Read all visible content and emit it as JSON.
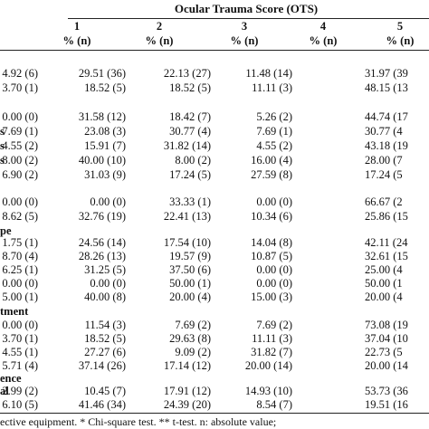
{
  "table": {
    "title": "Ocular Trauma Score (OTS)",
    "columns": [
      "1",
      "2",
      "3",
      "4",
      "5"
    ],
    "subheader": "% (n)",
    "rows": [
      {
        "label": "",
        "values": [
          "4.92 (6)",
          "29.51 (36)",
          "22.13 (27)",
          "11.48 (14)",
          "31.97 (39"
        ]
      },
      {
        "label": "",
        "values": [
          "3.70 (1)",
          "18.52 (5)",
          "18.52 (5)",
          "11.11 (3)",
          "48.15 (13"
        ]
      },
      {
        "label": "",
        "values": [
          "0.00 (0)",
          "31.58 (12)",
          "18.42 (7)",
          "5.26 (2)",
          "44.74 (17"
        ]
      },
      {
        "label": "s",
        "values": [
          "7.69 (1)",
          "23.08 (3)",
          "30.77 (4)",
          "7.69 (1)",
          "30.77 (4"
        ]
      },
      {
        "label": "s",
        "values": [
          "4.55 (2)",
          "15.91 (7)",
          "31.82 (14)",
          "4.55 (2)",
          "43.18 (19"
        ]
      },
      {
        "label": "s",
        "values": [
          "8.00 (2)",
          "40.00 (10)",
          "8.00 (2)",
          "16.00 (4)",
          "28.00 (7"
        ]
      },
      {
        "label": "",
        "values": [
          "6.90 (2)",
          "31.03 (9)",
          "17.24 (5)",
          "27.59 (8)",
          "17.24 (5"
        ]
      },
      {
        "label": "",
        "values": [
          "0.00 (0)",
          "0.00 (0)",
          "33.33 (1)",
          "0.00 (0)",
          "66.67 (2"
        ]
      },
      {
        "label": "",
        "values": [
          "8.62 (5)",
          "32.76 (19)",
          "22.41 (13)",
          "10.34 (6)",
          "25.86 (15"
        ]
      },
      {
        "label": "pe",
        "values": [
          "",
          "",
          "",
          "",
          ""
        ]
      },
      {
        "label": "",
        "values": [
          "1.75 (1)",
          "24.56 (14)",
          "17.54 (10)",
          "14.04 (8)",
          "42.11 (24"
        ]
      },
      {
        "label": "",
        "values": [
          "8.70 (4)",
          "28.26 (13)",
          "19.57 (9)",
          "10.87 (5)",
          "32.61 (15"
        ]
      },
      {
        "label": "",
        "values": [
          "6.25 (1)",
          "31.25 (5)",
          "37.50 (6)",
          "0.00 (0)",
          "25.00 (4"
        ]
      },
      {
        "label": "",
        "values": [
          "0.00 (0)",
          "0.00 (0)",
          "50.00 (1)",
          "0.00 (0)",
          "50.00 (1"
        ]
      },
      {
        "label": "",
        "values": [
          "5.00 (1)",
          "40.00 (8)",
          "20.00 (4)",
          "15.00 (3)",
          "20.00 (4"
        ]
      },
      {
        "label": "tment",
        "values": [
          "",
          "",
          "",
          "",
          ""
        ]
      },
      {
        "label": "",
        "values": [
          "0.00 (0)",
          "11.54 (3)",
          "7.69 (2)",
          "7.69 (2)",
          "73.08 (19"
        ]
      },
      {
        "label": "",
        "values": [
          "3.70 (1)",
          "18.52 (5)",
          "29.63 (8)",
          "11.11 (3)",
          "37.04 (10"
        ]
      },
      {
        "label": "",
        "values": [
          "4.55 (1)",
          "27.27 (6)",
          "9.09 (2)",
          "31.82 (7)",
          "22.73 (5"
        ]
      },
      {
        "label": "",
        "values": [
          "5.71 (4)",
          "37.14 (26)",
          "17.14 (12)",
          "20.00 (14)",
          "20.00 (14"
        ]
      },
      {
        "label": "ence",
        "values": [
          "",
          "",
          "",
          "",
          ""
        ]
      },
      {
        "label": "al",
        "values": [
          "2.99 (2)",
          "10.45 (7)",
          "17.91 (12)",
          "14.93 (10)",
          "53.73 (36"
        ]
      },
      {
        "label": "",
        "values": [
          "6.10 (5)",
          "41.46 (34)",
          "24.39 (20)",
          "8.54 (7)",
          "19.51 (16"
        ]
      }
    ],
    "footnote": "ective equipment. * Chi-square test. ** t-test. n: absolute value;"
  }
}
